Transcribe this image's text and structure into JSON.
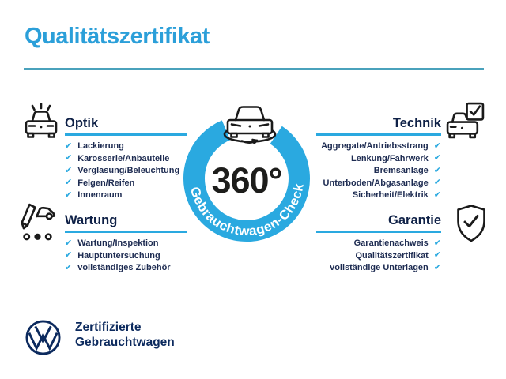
{
  "header": {
    "title": "Qualitätszertifikat"
  },
  "checkmark": "✔",
  "colors": {
    "accent_blue": "#2aa9e0",
    "title_blue": "#2b9fd9",
    "rule_teal": "#4aa2bc",
    "navy": "#0f2147",
    "item_navy": "#1e2c52",
    "dark": "#1d1d1b",
    "vw_navy": "#0c2a5e"
  },
  "center": {
    "value": "360°",
    "ring_label": "Gebrauchtwagen-Check",
    "icon": "car-rotate-icon"
  },
  "sections": {
    "optik": {
      "title": "Optik",
      "icon": "car-shine-icon",
      "items": [
        "Lackierung",
        "Karosserie/Anbauteile",
        "Verglasung/Beleuchtung",
        "Felgen/Reifen",
        "Innenraum"
      ]
    },
    "wartung": {
      "title": "Wartung",
      "icon": "pencil-car-icon",
      "items": [
        "Wartung/Inspektion",
        "Hauptuntersuchung",
        "vollständiges Zubehör"
      ]
    },
    "technik": {
      "title": "Technik",
      "icon": "car-checkbox-icon",
      "items": [
        "Aggregate/Antriebsstrang",
        "Lenkung/Fahrwerk",
        "Bremsanlage",
        "Unterboden/Abgasanlage",
        "Sicherheit/Elektrik"
      ]
    },
    "garantie": {
      "title": "Garantie",
      "icon": "shield-check-icon",
      "items": [
        "Garantienachweis",
        "Qualitätszertifikat",
        "vollständige Unterlagen"
      ]
    }
  },
  "footer": {
    "brand": "VW",
    "line1": "Zertifizierte",
    "line2": "Gebrauchtwagen"
  }
}
